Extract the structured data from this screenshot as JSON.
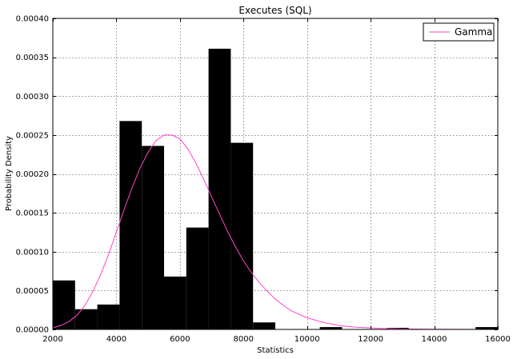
{
  "chart_data": {
    "type": "histogram",
    "title": "Executes (SQL)",
    "xlabel": "Statistics",
    "ylabel": "Probability Density",
    "xlim": [
      2000,
      16000
    ],
    "ylim": [
      0,
      0.0004
    ],
    "xticks": [
      2000,
      4000,
      6000,
      8000,
      10000,
      12000,
      14000,
      16000
    ],
    "xtick_labels": [
      "2000",
      "4000",
      "6000",
      "8000",
      "10000",
      "12000",
      "14000",
      "16000"
    ],
    "yticks": [
      0,
      5e-05,
      0.0001,
      0.00015,
      0.0002,
      0.00025,
      0.0003,
      0.00035,
      0.0004
    ],
    "ytick_labels": [
      "0.00000",
      "0.00005",
      "0.00010",
      "0.00015",
      "0.00020",
      "0.00025",
      "0.00030",
      "0.00035",
      "0.00040"
    ],
    "grid": true,
    "legend_position": "top-right",
    "bars": {
      "color": "#000000",
      "bin_edges": [
        2000,
        2700,
        3400,
        4100,
        4800,
        5500,
        6200,
        6900,
        7600,
        8300,
        9000,
        9700,
        10400,
        11100,
        11800,
        12500,
        13200,
        13900,
        14600,
        15300,
        16000
      ],
      "values": [
        6.3e-05,
        2.6e-05,
        3.2e-05,
        0.000268,
        0.000236,
        6.8e-05,
        0.000131,
        0.000361,
        0.00024,
        9e-06,
        0,
        0,
        3e-06,
        0,
        0,
        2e-06,
        0,
        0,
        0,
        3e-06
      ]
    },
    "series": [
      {
        "name": "Gamma",
        "color": "#ff44cc",
        "x": [
          2000,
          2250,
          2500,
          2750,
          3000,
          3250,
          3500,
          3750,
          4000,
          4250,
          4500,
          4750,
          5000,
          5250,
          5500,
          5750,
          6000,
          6250,
          6500,
          6750,
          7000,
          7250,
          7500,
          7750,
          8000,
          8250,
          8500,
          8750,
          9000,
          9250,
          9500,
          10000,
          10500,
          11000,
          11500,
          12000,
          12500,
          13000,
          14000,
          15000,
          16000
        ],
        "values": [
          2e-06,
          5e-06,
          1e-05,
          1.8e-05,
          3e-05,
          4.8e-05,
          7e-05,
          9.6e-05,
          0.000125,
          0.000155,
          0.000183,
          0.000208,
          0.000228,
          0.000243,
          0.00025,
          0.00025,
          0.000245,
          0.000232,
          0.000214,
          0.000193,
          0.00017,
          0.000148,
          0.000126,
          0.000106,
          8.8e-05,
          7.3e-05,
          6e-05,
          4.9e-05,
          3.9e-05,
          3.1e-05,
          2.4e-05,
          1.5e-05,
          9e-06,
          5e-06,
          3e-06,
          2e-06,
          1e-06,
          5e-07,
          2e-07,
          1e-07,
          0
        ]
      }
    ]
  }
}
